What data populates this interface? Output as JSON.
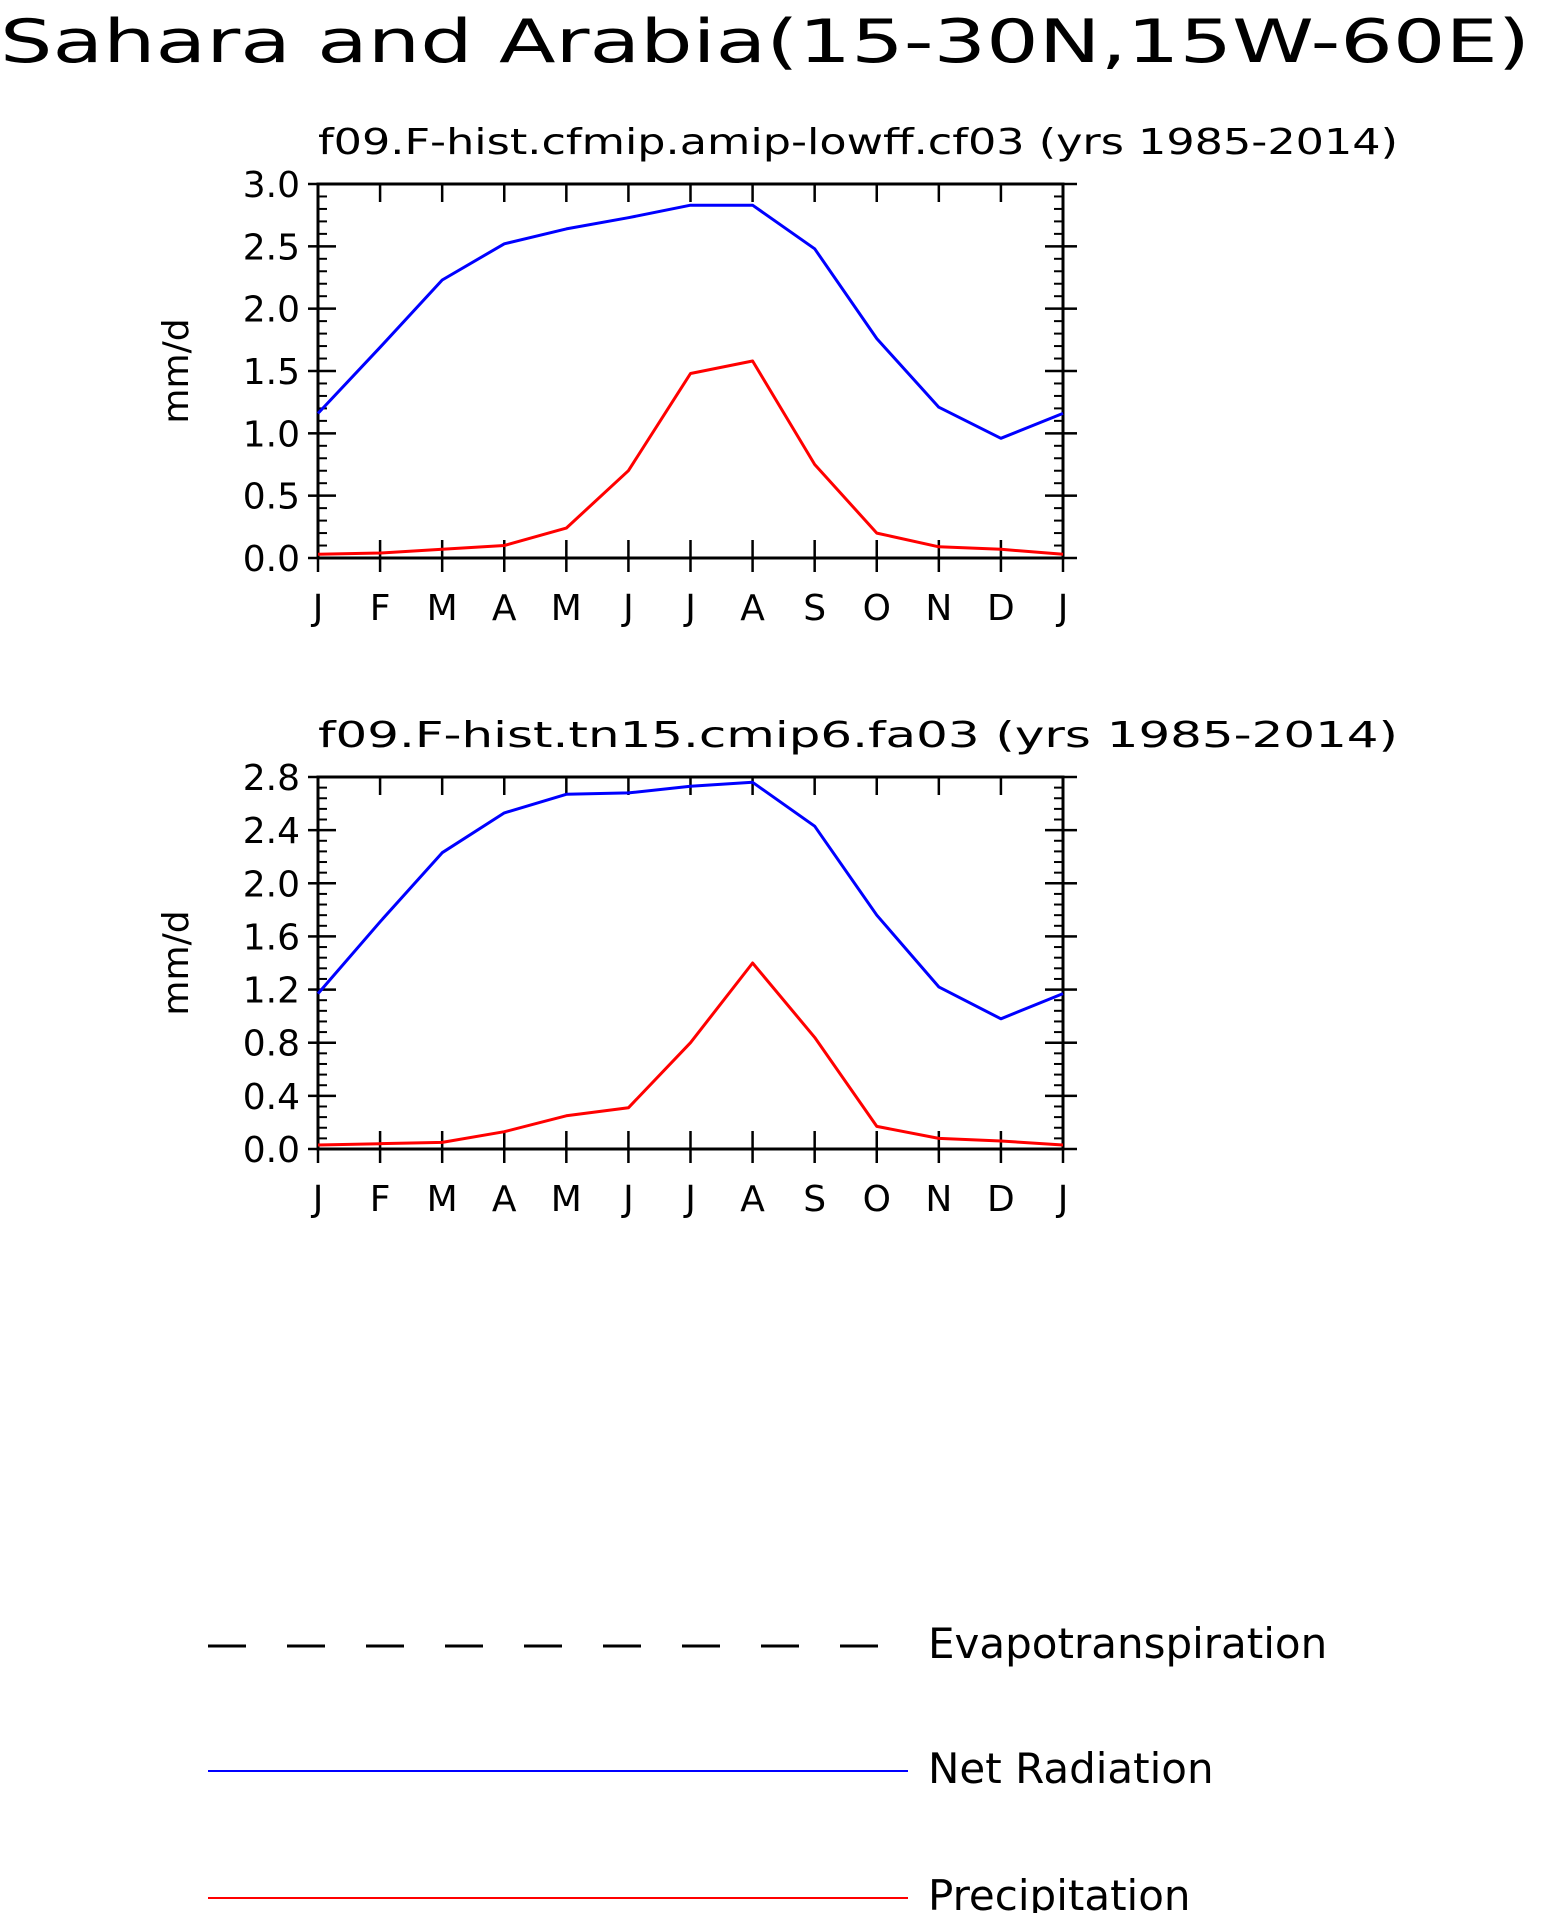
{
  "figure": {
    "title": "Sahara and Arabia(15-30N,15W-60E)"
  },
  "legend": {
    "items": [
      {
        "label": "Evapotranspiration",
        "color": "#000000",
        "style": "dashed"
      },
      {
        "label": "Net Radiation",
        "color": "#0000ff",
        "style": "solid"
      },
      {
        "label": "Precipitation",
        "color": "#ff0000",
        "style": "solid"
      }
    ]
  },
  "chart_data": [
    {
      "type": "line",
      "title": "f09.F-hist.cfmip.amip-lowff.cf03 (yrs 1985-2014)",
      "ylabel": "mm/d",
      "xlabel": "",
      "categories": [
        "J",
        "F",
        "M",
        "A",
        "M",
        "J",
        "J",
        "A",
        "S",
        "O",
        "N",
        "D",
        "J"
      ],
      "ylim": [
        0,
        3.0
      ],
      "yticks": [
        0.0,
        0.5,
        1.0,
        1.5,
        2.0,
        2.5,
        3.0
      ],
      "ytick_labels": [
        "0.0",
        "0.5",
        "1.0",
        "1.5",
        "2.0",
        "2.5",
        "3.0"
      ],
      "grid": false,
      "series": [
        {
          "name": "Net Radiation",
          "color": "#0000ff",
          "values": [
            1.16,
            1.69,
            2.23,
            2.52,
            2.64,
            2.73,
            2.83,
            2.83,
            2.48,
            1.76,
            1.21,
            0.96,
            1.16
          ]
        },
        {
          "name": "Precipitation",
          "color": "#ff0000",
          "values": [
            0.03,
            0.04,
            0.07,
            0.1,
            0.24,
            0.7,
            1.48,
            1.58,
            0.75,
            0.2,
            0.09,
            0.07,
            0.03
          ]
        }
      ]
    },
    {
      "type": "line",
      "title": "f09.F-hist.tn15.cmip6.fa03 (yrs 1985-2014)",
      "ylabel": "mm/d",
      "xlabel": "",
      "categories": [
        "J",
        "F",
        "M",
        "A",
        "M",
        "J",
        "J",
        "A",
        "S",
        "O",
        "N",
        "D",
        "J"
      ],
      "ylim": [
        0,
        2.8
      ],
      "yticks": [
        0.0,
        0.4,
        0.8,
        1.2,
        1.6,
        2.0,
        2.4,
        2.8
      ],
      "ytick_labels": [
        "0.0",
        "0.4",
        "0.8",
        "1.2",
        "1.6",
        "2.0",
        "2.4",
        "2.8"
      ],
      "grid": false,
      "series": [
        {
          "name": "Net Radiation",
          "color": "#0000ff",
          "values": [
            1.17,
            1.71,
            2.23,
            2.53,
            2.67,
            2.68,
            2.73,
            2.76,
            2.43,
            1.76,
            1.22,
            0.98,
            1.17
          ]
        },
        {
          "name": "Precipitation",
          "color": "#ff0000",
          "values": [
            0.03,
            0.04,
            0.05,
            0.13,
            0.25,
            0.31,
            0.8,
            1.4,
            0.84,
            0.17,
            0.08,
            0.06,
            0.03
          ]
        }
      ]
    }
  ]
}
